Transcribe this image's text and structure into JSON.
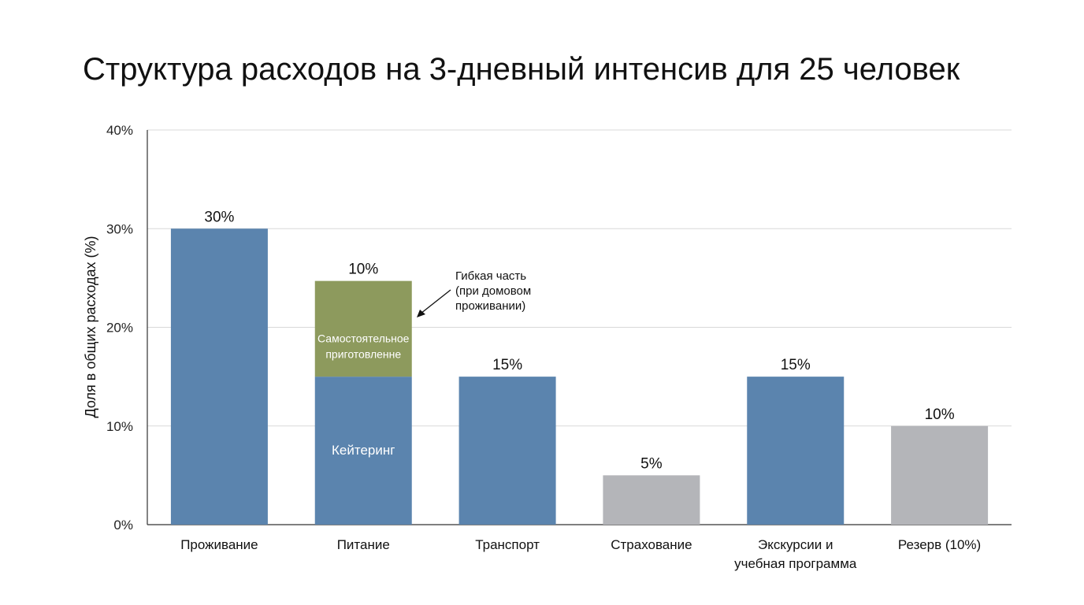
{
  "chart_data": {
    "type": "bar",
    "title": "Структура расходов на 3-дневный интенсив для 25 человек",
    "ylabel": "Доля в общих расходах (%)",
    "ylim": [
      0,
      40
    ],
    "yticks": [
      "0%",
      "10%",
      "20%",
      "30%",
      "40%"
    ],
    "grid": true,
    "categories": [
      [
        "Проживание"
      ],
      [
        "Питание"
      ],
      [
        "Транспорт"
      ],
      [
        "Страхование"
      ],
      [
        "Экскурсии и",
        "учебная программа"
      ],
      [
        "Резерв (10%)"
      ]
    ],
    "bars": [
      {
        "segments": [
          {
            "value": 30,
            "color": "#5b84ae"
          }
        ],
        "label": "30%"
      },
      {
        "segments": [
          {
            "value": 15,
            "color": "#5b84ae",
            "text": [
              "Кейтеринг"
            ]
          },
          {
            "value": 9.7,
            "color": "#8d9a5d",
            "text": [
              "Самостоятельное",
              "приготовленне"
            ]
          }
        ],
        "label": "10%"
      },
      {
        "segments": [
          {
            "value": 15,
            "color": "#5b84ae"
          }
        ],
        "label": "15%"
      },
      {
        "segments": [
          {
            "value": 5,
            "color": "#b4b5b9"
          }
        ],
        "label": "5%"
      },
      {
        "segments": [
          {
            "value": 15,
            "color": "#5b84ae"
          }
        ],
        "label": "15%"
      },
      {
        "segments": [
          {
            "value": 10,
            "color": "#b4b5b9"
          }
        ],
        "label": "10%"
      }
    ],
    "annotation": {
      "lines": [
        "Гибкая часть",
        "(при домовом",
        "проживании)"
      ],
      "target_bar": 1
    }
  }
}
